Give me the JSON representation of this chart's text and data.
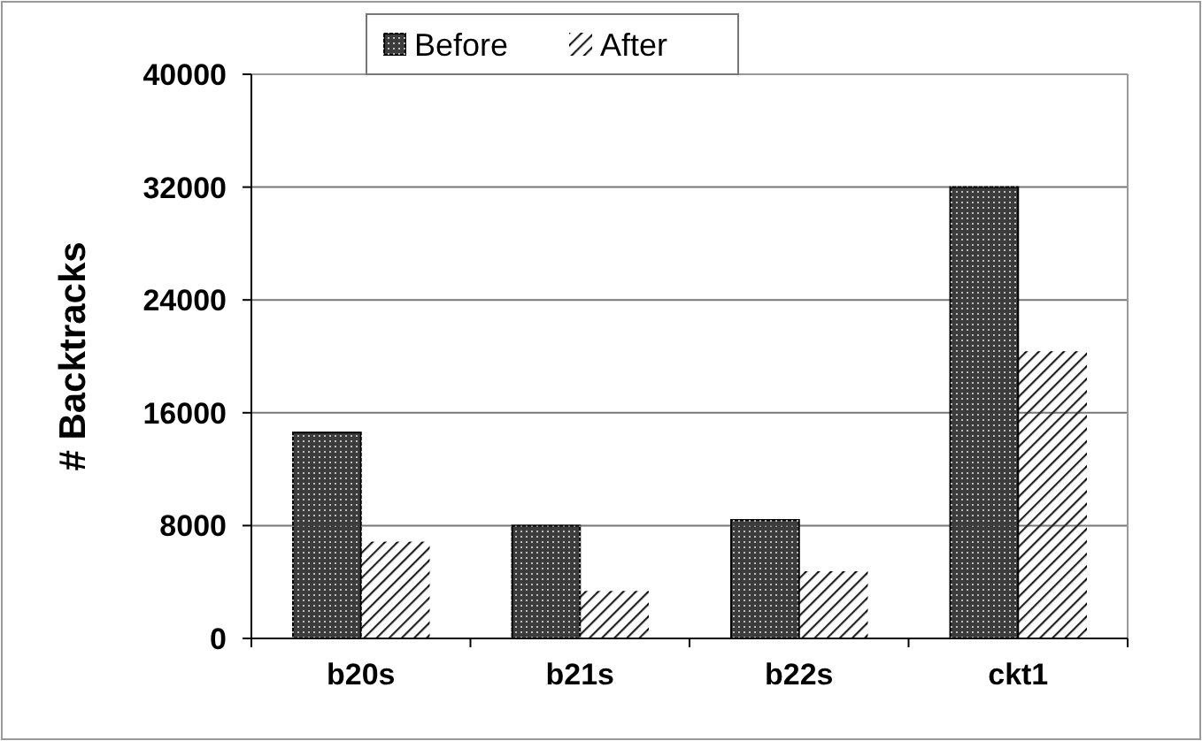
{
  "chart_data": {
    "type": "bar",
    "ylabel": "# Backtracks",
    "categories": [
      "b20s",
      "b21s",
      "b22s",
      "ckt1"
    ],
    "series": [
      {
        "name": "Before",
        "color": "#3c3c3c",
        "values": [
          14600,
          8000,
          8400,
          32000
        ]
      },
      {
        "name": "After",
        "color": "#222222",
        "values": [
          6800,
          3300,
          4700,
          20300
        ]
      }
    ],
    "ylim": [
      0,
      40000
    ],
    "yticks": [
      0,
      8000,
      16000,
      24000,
      32000,
      40000
    ],
    "grid": "y",
    "legend": "top"
  }
}
